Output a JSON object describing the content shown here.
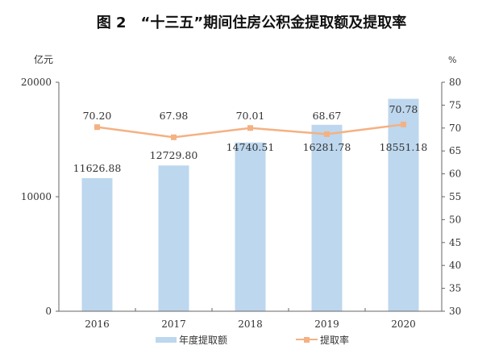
{
  "title": "图 2　“十三五”期间住房公积金提取额及提取率",
  "chart_data": {
    "type": "bar+line",
    "title": "图 2　“十三五”期间住房公积金提取额及提取率",
    "categories": [
      "2016",
      "2017",
      "2018",
      "2019",
      "2020"
    ],
    "series": [
      {
        "name": "年度提取额",
        "type": "bar",
        "axis": "left",
        "values": [
          11626.88,
          12729.8,
          14740.51,
          16281.78,
          18551.18
        ],
        "labels": [
          "11626.88",
          "12729.80",
          "14740.51",
          "16281.78",
          "18551.18"
        ],
        "color": "#bdd7ee"
      },
      {
        "name": "提取率",
        "type": "line",
        "axis": "right",
        "values": [
          70.2,
          67.98,
          70.01,
          68.67,
          70.78
        ],
        "labels": [
          "70.20",
          "67.98",
          "70.01",
          "68.67",
          "70.78"
        ],
        "color": "#f4b183"
      }
    ],
    "y_left": {
      "label": "亿元",
      "ylim": [
        0,
        20000
      ],
      "ticks": [
        "0",
        "10000",
        "20000"
      ]
    },
    "y_right": {
      "label": "%",
      "ylim": [
        30,
        80
      ],
      "ticks": [
        "30",
        "35",
        "40",
        "45",
        "50",
        "55",
        "60",
        "65",
        "70",
        "75",
        "80"
      ]
    },
    "grid": false,
    "legend": "bottom"
  }
}
